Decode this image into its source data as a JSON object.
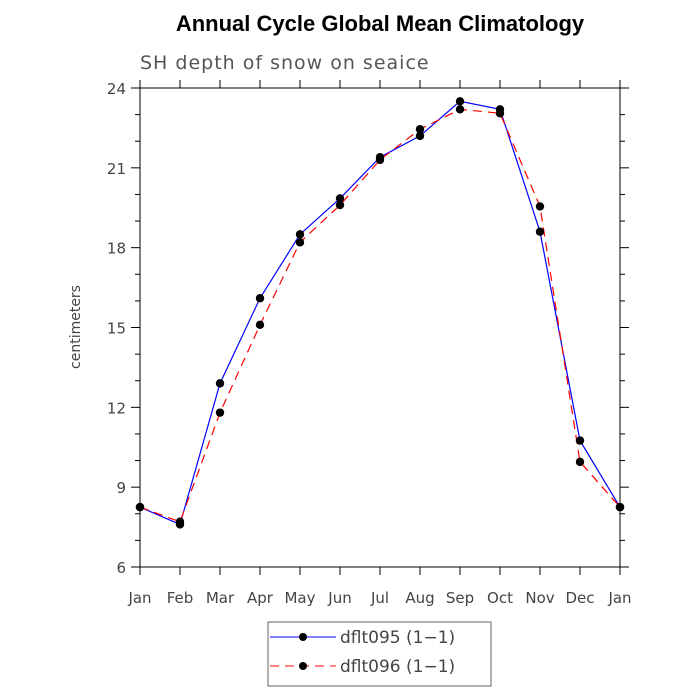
{
  "chart_data": {
    "type": "line",
    "title": "Annual Cycle Global Mean Climatology",
    "subtitle": "SH depth of snow on seaice",
    "xlabel": "",
    "ylabel": "centimeters",
    "categories": [
      "Jan",
      "Feb",
      "Mar",
      "Apr",
      "May",
      "Jun",
      "Jul",
      "Aug",
      "Sep",
      "Oct",
      "Nov",
      "Dec",
      "Jan"
    ],
    "ylim": [
      6,
      24
    ],
    "yticks": [
      "6",
      "9",
      "12",
      "15",
      "18",
      "21",
      "24"
    ],
    "series": [
      {
        "name": "dflt095 (1−1)",
        "color": "#0000ff",
        "dash": "solid",
        "values": [
          8.25,
          7.6,
          12.9,
          16.1,
          18.5,
          19.85,
          21.4,
          22.2,
          23.5,
          23.2,
          18.6,
          10.75,
          8.25
        ]
      },
      {
        "name": "dflt096 (1−1)",
        "color": "#ff0000",
        "dash": "dashed",
        "values": [
          8.25,
          7.7,
          11.8,
          15.1,
          18.2,
          19.6,
          21.3,
          22.45,
          23.2,
          23.05,
          19.55,
          9.95,
          8.25
        ]
      }
    ],
    "legend_position": "bottom-center",
    "grid": false
  }
}
